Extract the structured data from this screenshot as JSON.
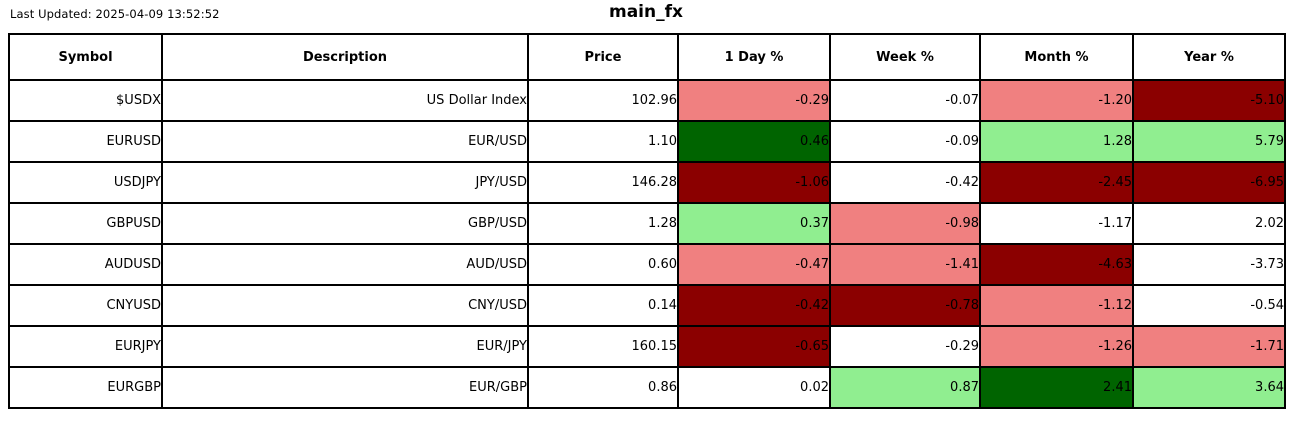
{
  "header": {
    "last_updated": "Last Updated: 2025-04-09 13:52:52",
    "title": "main_fx"
  },
  "colors": {
    "white": "#FFFFFF",
    "lightcoral": "#F08080",
    "darkred": "#8B0000",
    "lightgreen": "#90EE90",
    "darkgreen": "#006400",
    "border": "#000000",
    "text": "#000000"
  },
  "chart_data": {
    "type": "table",
    "title": "main_fx",
    "last_updated": "2025-04-09 13:52:52",
    "columns": [
      "Symbol",
      "Description",
      "Price",
      "1 Day %",
      "Week %",
      "Month %",
      "Year %"
    ],
    "rows": [
      {
        "cells": [
          "$USDX",
          "US Dollar Index",
          "102.96",
          "-0.29",
          "-0.07",
          "-1.20",
          "-5.10"
        ],
        "cell_colors": [
          "white",
          "white",
          "white",
          "lightcoral",
          "white",
          "lightcoral",
          "darkred"
        ]
      },
      {
        "cells": [
          "EURUSD",
          "EUR/USD",
          "1.10",
          "0.46",
          "-0.09",
          "1.28",
          "5.79"
        ],
        "cell_colors": [
          "white",
          "white",
          "white",
          "darkgreen",
          "white",
          "lightgreen",
          "lightgreen"
        ]
      },
      {
        "cells": [
          "USDJPY",
          "JPY/USD",
          "146.28",
          "-1.06",
          "-0.42",
          "-2.45",
          "-6.95"
        ],
        "cell_colors": [
          "white",
          "white",
          "white",
          "darkred",
          "white",
          "darkred",
          "darkred"
        ]
      },
      {
        "cells": [
          "GBPUSD",
          "GBP/USD",
          "1.28",
          "0.37",
          "-0.98",
          "-1.17",
          "2.02"
        ],
        "cell_colors": [
          "white",
          "white",
          "white",
          "lightgreen",
          "lightcoral",
          "white",
          "white"
        ]
      },
      {
        "cells": [
          "AUDUSD",
          "AUD/USD",
          "0.60",
          "-0.47",
          "-1.41",
          "-4.63",
          "-3.73"
        ],
        "cell_colors": [
          "white",
          "white",
          "white",
          "lightcoral",
          "lightcoral",
          "darkred",
          "white"
        ]
      },
      {
        "cells": [
          "CNYUSD",
          "CNY/USD",
          "0.14",
          "-0.42",
          "-0.78",
          "-1.12",
          "-0.54"
        ],
        "cell_colors": [
          "white",
          "white",
          "white",
          "darkred",
          "darkred",
          "lightcoral",
          "white"
        ]
      },
      {
        "cells": [
          "EURJPY",
          "EUR/JPY",
          "160.15",
          "-0.65",
          "-0.29",
          "-1.26",
          "-1.71"
        ],
        "cell_colors": [
          "white",
          "white",
          "white",
          "darkred",
          "white",
          "lightcoral",
          "lightcoral"
        ]
      },
      {
        "cells": [
          "EURGBP",
          "EUR/GBP",
          "0.86",
          "0.02",
          "0.87",
          "2.41",
          "3.64"
        ],
        "cell_colors": [
          "white",
          "white",
          "white",
          "white",
          "lightgreen",
          "darkgreen",
          "lightgreen"
        ]
      }
    ]
  }
}
